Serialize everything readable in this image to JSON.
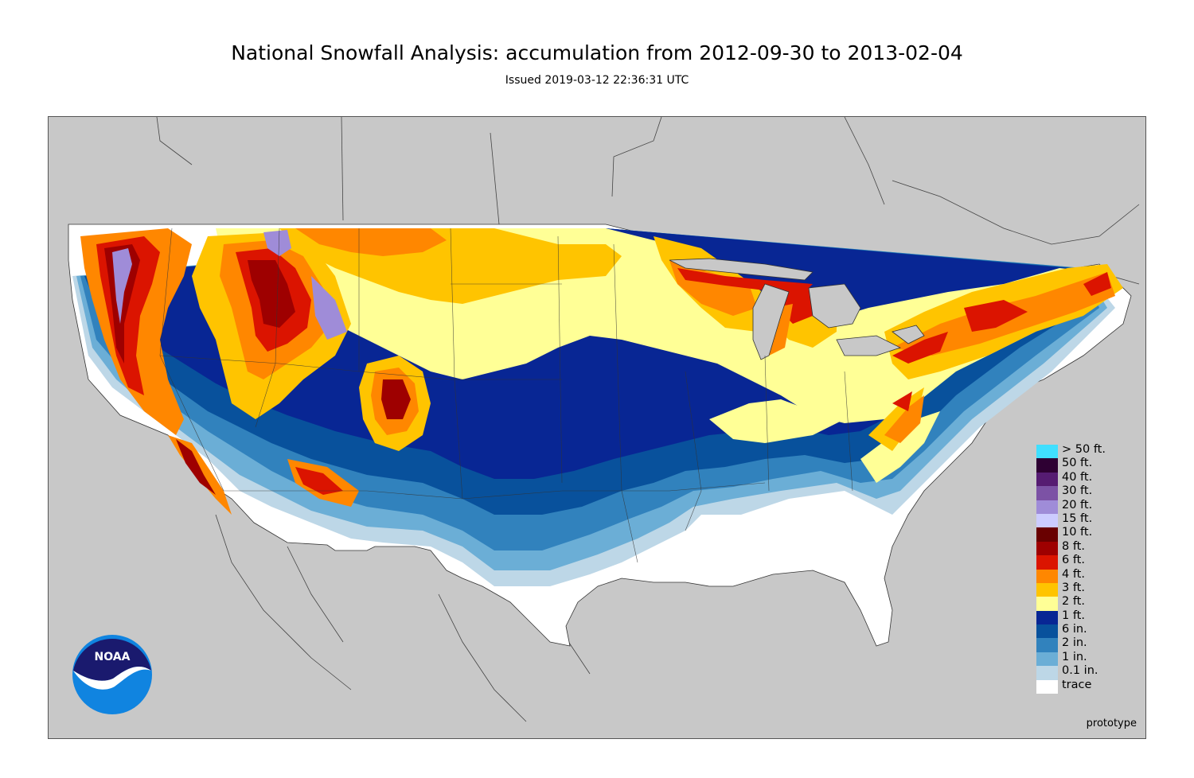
{
  "title": "National Snowfall Analysis: accumulation from 2012-09-30 to 2013-02-04",
  "subtitle": "Issued 2019-03-12 22:36:31 UTC",
  "footer_note": "prototype",
  "logo": {
    "text": "NOAA",
    "icon": "noaa-logo-icon"
  },
  "colors": {
    "background_land_outside": "#c8c8c8",
    "trace": "#ffffff",
    "0.1_in": "#bdd7e7",
    "1_in": "#6baed6",
    "2_in": "#3182bd",
    "6_in": "#08519c",
    "1_ft": "#082694",
    "2_ft": "#ffff96",
    "3_ft": "#ffc400",
    "4_ft": "#ff8700",
    "6_ft": "#db1400",
    "8_ft": "#9e0000",
    "10_ft": "#690000",
    "15_ft": "#ccccff",
    "20_ft": "#9f8cd8",
    "30_ft": "#7c52a5",
    "40_ft": "#561c72",
    "50_ft": "#2e0033",
    "gt_50_ft": "#40dfff"
  },
  "legend": [
    {
      "label": "> 50 ft.",
      "color": "#40dfff"
    },
    {
      "label": "50 ft.",
      "color": "#2e0033"
    },
    {
      "label": "40 ft.",
      "color": "#561c72"
    },
    {
      "label": "30 ft.",
      "color": "#7c52a5"
    },
    {
      "label": "20 ft.",
      "color": "#9f8cd8"
    },
    {
      "label": "15 ft.",
      "color": "#ccccff"
    },
    {
      "label": "10 ft.",
      "color": "#690000"
    },
    {
      "label": "8 ft.",
      "color": "#9e0000"
    },
    {
      "label": "6 ft.",
      "color": "#db1400"
    },
    {
      "label": "4 ft.",
      "color": "#ff8700"
    },
    {
      "label": "3 ft.",
      "color": "#ffc400"
    },
    {
      "label": "2 ft.",
      "color": "#ffff96"
    },
    {
      "label": "1 ft.",
      "color": "#082694"
    },
    {
      "label": "6 in.",
      "color": "#08519c"
    },
    {
      "label": "2 in.",
      "color": "#3182bd"
    },
    {
      "label": "1 in.",
      "color": "#6baed6"
    },
    {
      "label": "0.1 in.",
      "color": "#bdd7e7"
    },
    {
      "label": "trace",
      "color": "#ffffff"
    }
  ]
}
